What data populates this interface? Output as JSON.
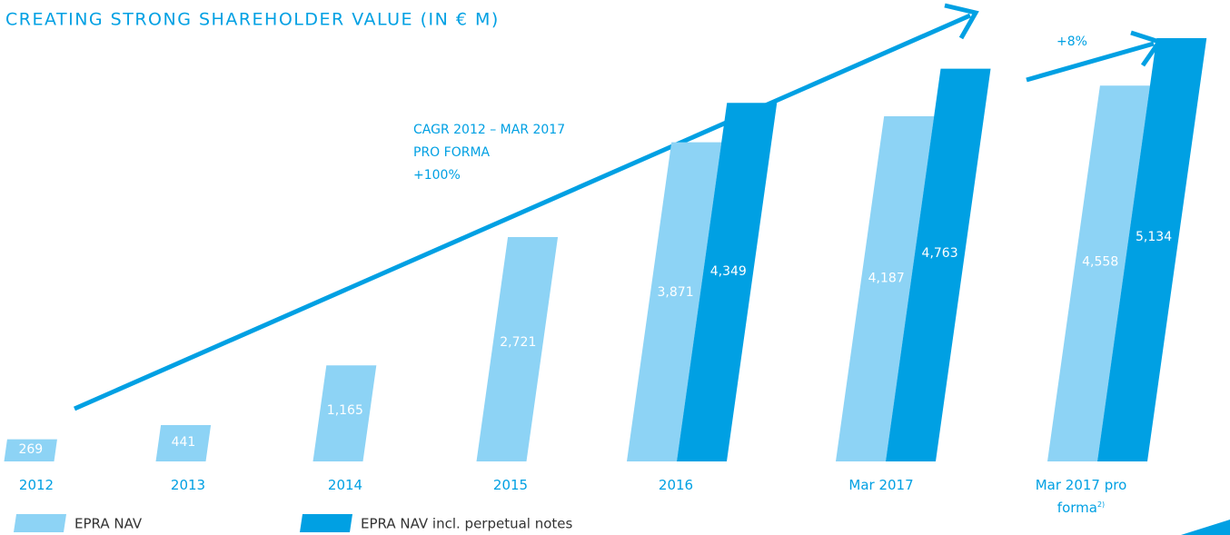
{
  "chart_data": {
    "type": "bar",
    "title": "CREATING STRONG SHAREHOLDER VALUE (IN € M)",
    "annotations": [
      "CAGR 2012 – MAR 2017",
      "PRO FORMA",
      "+100%",
      "+8%"
    ],
    "categories": [
      "2012",
      "2013",
      "2014",
      "2015",
      "2016",
      "Mar 2017",
      "Mar 2017 pro forma"
    ],
    "category_notes": [
      null,
      null,
      null,
      null,
      null,
      null,
      "2)"
    ],
    "series": [
      {
        "name": "EPRA NAV",
        "color": "#8dd3f5",
        "values": [
          269,
          441,
          1165,
          2721,
          3871,
          4187,
          4558
        ],
        "value_labels": [
          "269",
          "441",
          "1,165",
          "2,721",
          "3,871",
          "4,187",
          "4,558"
        ]
      },
      {
        "name": "EPRA NAV incl. perpetual notes",
        "color": "#00a0e3",
        "values": [
          null,
          null,
          null,
          null,
          4349,
          4763,
          5134
        ],
        "value_labels": [
          null,
          null,
          null,
          null,
          "4,349",
          "4,763",
          "5,134"
        ]
      }
    ]
  }
}
